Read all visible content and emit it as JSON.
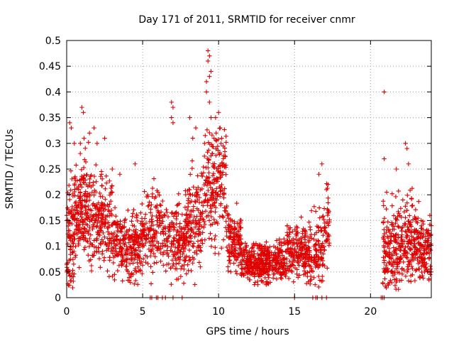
{
  "chart_data": {
    "type": "scatter",
    "title": "Day 171 of 2011, SRMTID for receiver cnmr",
    "xlabel": "GPS time / hours",
    "ylabel": "SRMTID / TECUs",
    "xlim": [
      0,
      24
    ],
    "ylim": [
      0,
      0.5
    ],
    "x_ticks": [
      0,
      5,
      10,
      15,
      20
    ],
    "x_tick_labels": [
      "0",
      "5",
      "10",
      "15",
      "20"
    ],
    "y_ticks": [
      0,
      0.05,
      0.1,
      0.15,
      0.2,
      0.25,
      0.3,
      0.35,
      0.4,
      0.45,
      0.5
    ],
    "y_tick_labels": [
      "0",
      "0.05",
      "0.1",
      "0.15",
      "0.2",
      "0.25",
      "0.3",
      "0.35",
      "0.4",
      "0.45",
      "0.5"
    ],
    "grid": true,
    "marker": "plus",
    "color": "#e00000",
    "density_profile": [
      {
        "x0": 0.0,
        "x1": 0.5,
        "center": 0.11,
        "spread": 0.08,
        "count": 90
      },
      {
        "x0": 0.5,
        "x1": 1.5,
        "center": 0.17,
        "spread": 0.06,
        "count": 170
      },
      {
        "x0": 1.5,
        "x1": 3.0,
        "center": 0.15,
        "spread": 0.06,
        "count": 200
      },
      {
        "x0": 3.0,
        "x1": 5.0,
        "center": 0.1,
        "spread": 0.045,
        "count": 260
      },
      {
        "x0": 5.0,
        "x1": 6.5,
        "center": 0.13,
        "spread": 0.05,
        "count": 150
      },
      {
        "x0": 6.5,
        "x1": 7.8,
        "center": 0.11,
        "spread": 0.05,
        "count": 150
      },
      {
        "x0": 7.8,
        "x1": 9.0,
        "center": 0.15,
        "spread": 0.06,
        "count": 160
      },
      {
        "x0": 9.0,
        "x1": 10.5,
        "center": 0.22,
        "spread": 0.07,
        "count": 200
      },
      {
        "x0": 10.5,
        "x1": 11.5,
        "center": 0.11,
        "spread": 0.04,
        "count": 140
      },
      {
        "x0": 11.5,
        "x1": 14.5,
        "center": 0.07,
        "spread": 0.025,
        "count": 420
      },
      {
        "x0": 14.5,
        "x1": 16.0,
        "center": 0.09,
        "spread": 0.035,
        "count": 200
      },
      {
        "x0": 16.0,
        "x1": 17.0,
        "center": 0.09,
        "spread": 0.05,
        "count": 110
      },
      {
        "x0": 17.0,
        "x1": 17.3,
        "center": 0.14,
        "spread": 0.05,
        "count": 30
      },
      {
        "x0": 20.8,
        "x1": 22.0,
        "center": 0.09,
        "spread": 0.06,
        "count": 170
      },
      {
        "x0": 22.0,
        "x1": 23.2,
        "center": 0.11,
        "spread": 0.06,
        "count": 170
      },
      {
        "x0": 23.2,
        "x1": 24.0,
        "center": 0.09,
        "spread": 0.04,
        "count": 110
      }
    ],
    "notable_points": [
      {
        "x": 0.2,
        "y": 0.34
      },
      {
        "x": 0.3,
        "y": 0.33
      },
      {
        "x": 0.5,
        "y": 0.3
      },
      {
        "x": 1.0,
        "y": 0.37
      },
      {
        "x": 1.1,
        "y": 0.36
      },
      {
        "x": 0.9,
        "y": 0.3
      },
      {
        "x": 1.5,
        "y": 0.32
      },
      {
        "x": 1.8,
        "y": 0.33
      },
      {
        "x": 2.0,
        "y": 0.3
      },
      {
        "x": 2.5,
        "y": 0.31
      },
      {
        "x": 3.0,
        "y": 0.25
      },
      {
        "x": 3.5,
        "y": 0.24
      },
      {
        "x": 4.5,
        "y": 0.26
      },
      {
        "x": 6.9,
        "y": 0.38
      },
      {
        "x": 7.0,
        "y": 0.37
      },
      {
        "x": 6.9,
        "y": 0.35
      },
      {
        "x": 7.0,
        "y": 0.34
      },
      {
        "x": 8.1,
        "y": 0.35
      },
      {
        "x": 8.3,
        "y": 0.31
      },
      {
        "x": 8.5,
        "y": 0.33
      },
      {
        "x": 9.2,
        "y": 0.42
      },
      {
        "x": 9.3,
        "y": 0.48
      },
      {
        "x": 9.4,
        "y": 0.47
      },
      {
        "x": 9.3,
        "y": 0.46
      },
      {
        "x": 9.5,
        "y": 0.44
      },
      {
        "x": 9.4,
        "y": 0.43
      },
      {
        "x": 9.2,
        "y": 0.4
      },
      {
        "x": 9.5,
        "y": 0.35
      },
      {
        "x": 9.4,
        "y": 0.38
      },
      {
        "x": 9.8,
        "y": 0.35
      },
      {
        "x": 10.0,
        "y": 0.36
      },
      {
        "x": 10.1,
        "y": 0.33
      },
      {
        "x": 10.2,
        "y": 0.31
      },
      {
        "x": 9.7,
        "y": 0.31
      },
      {
        "x": 9.6,
        "y": 0.28
      },
      {
        "x": 16.8,
        "y": 0.26
      },
      {
        "x": 16.6,
        "y": 0.24
      },
      {
        "x": 17.2,
        "y": 0.22
      },
      {
        "x": 17.1,
        "y": 0.21
      },
      {
        "x": 20.9,
        "y": 0.4
      },
      {
        "x": 20.9,
        "y": 0.27
      },
      {
        "x": 22.3,
        "y": 0.3
      },
      {
        "x": 22.4,
        "y": 0.29
      },
      {
        "x": 22.5,
        "y": 0.26
      },
      {
        "x": 21.7,
        "y": 0.25
      },
      {
        "x": 0.0,
        "y": 0.16
      },
      {
        "x": 0.0,
        "y": 0.15
      },
      {
        "x": 23.9,
        "y": 0.16
      },
      {
        "x": 24.0,
        "y": 0.14
      }
    ],
    "zero_points_x": [
      5.5,
      5.6,
      5.9,
      6.0,
      6.3,
      6.5,
      7.0,
      7.6,
      15.0,
      16.2,
      16.4,
      16.5,
      16.8,
      17.1,
      20.7,
      20.8,
      20.9
    ],
    "seed": 171
  }
}
